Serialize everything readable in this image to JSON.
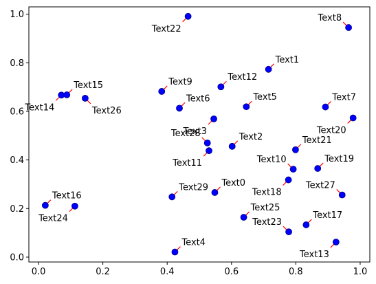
{
  "chart_data": {
    "type": "scatter",
    "title": "",
    "xlabel": "",
    "ylabel": "",
    "xlim": [
      -0.03,
      1.03
    ],
    "ylim": [
      -0.02,
      1.03
    ],
    "xticks": [
      0.0,
      0.2,
      0.4,
      0.6,
      0.8,
      1.0
    ],
    "xtick_labels": [
      "0.0",
      "0.2",
      "0.4",
      "0.6",
      "0.8",
      "1.0"
    ],
    "yticks": [
      0.0,
      0.2,
      0.4,
      0.6,
      0.8,
      1.0
    ],
    "ytick_labels": [
      "0.0",
      "0.2",
      "0.4",
      "0.6",
      "0.8",
      "1.0"
    ],
    "grid": false,
    "marker_color": "#0000ff",
    "marker_edge_color": "#000080",
    "annotation_line_color": "#ff0000",
    "points": [
      {
        "label": "Text0",
        "x": 0.548,
        "y": 0.266,
        "label_side": "upper-right"
      },
      {
        "label": "Text1",
        "x": 0.715,
        "y": 0.773,
        "label_side": "upper-right"
      },
      {
        "label": "Text2",
        "x": 0.602,
        "y": 0.456,
        "label_side": "upper-right"
      },
      {
        "label": "Text3",
        "x": 0.545,
        "y": 0.569,
        "label_side": "lower-left"
      },
      {
        "label": "Text4",
        "x": 0.424,
        "y": 0.021,
        "label_side": "upper-right"
      },
      {
        "label": "Text5",
        "x": 0.646,
        "y": 0.619,
        "label_side": "upper-right"
      },
      {
        "label": "Text6",
        "x": 0.438,
        "y": 0.613,
        "label_side": "upper-right"
      },
      {
        "label": "Text7",
        "x": 0.892,
        "y": 0.618,
        "label_side": "upper-right"
      },
      {
        "label": "Text8",
        "x": 0.964,
        "y": 0.945,
        "label_side": "upper-left"
      },
      {
        "label": "Text9",
        "x": 0.383,
        "y": 0.682,
        "label_side": "upper-right"
      },
      {
        "label": "Text10",
        "x": 0.792,
        "y": 0.362,
        "label_side": "upper-left"
      },
      {
        "label": "Text11",
        "x": 0.53,
        "y": 0.438,
        "label_side": "lower-left"
      },
      {
        "label": "Text12",
        "x": 0.567,
        "y": 0.701,
        "label_side": "upper-right"
      },
      {
        "label": "Text13",
        "x": 0.925,
        "y": 0.062,
        "label_side": "lower-left"
      },
      {
        "label": "Text14",
        "x": 0.071,
        "y": 0.667,
        "label_side": "lower-left"
      },
      {
        "label": "Text15",
        "x": 0.088,
        "y": 0.668,
        "label_side": "upper-right"
      },
      {
        "label": "Text16",
        "x": 0.021,
        "y": 0.213,
        "label_side": "upper-right"
      },
      {
        "label": "Text17",
        "x": 0.832,
        "y": 0.133,
        "label_side": "upper-right"
      },
      {
        "label": "Text18",
        "x": 0.777,
        "y": 0.318,
        "label_side": "lower-left"
      },
      {
        "label": "Text19",
        "x": 0.868,
        "y": 0.365,
        "label_side": "upper-right"
      },
      {
        "label": "Text20",
        "x": 0.978,
        "y": 0.573,
        "label_side": "lower-left"
      },
      {
        "label": "Text21",
        "x": 0.799,
        "y": 0.442,
        "label_side": "upper-right"
      },
      {
        "label": "Text22",
        "x": 0.465,
        "y": 0.991,
        "label_side": "lower-left"
      },
      {
        "label": "Text23",
        "x": 0.778,
        "y": 0.104,
        "label_side": "upper-left"
      },
      {
        "label": "Text24",
        "x": 0.113,
        "y": 0.21,
        "label_side": "lower-left"
      },
      {
        "label": "Text25",
        "x": 0.638,
        "y": 0.164,
        "label_side": "upper-right"
      },
      {
        "label": "Text26",
        "x": 0.145,
        "y": 0.654,
        "label_side": "lower-right"
      },
      {
        "label": "Text27",
        "x": 0.944,
        "y": 0.256,
        "label_side": "upper-left"
      },
      {
        "label": "Text28",
        "x": 0.525,
        "y": 0.47,
        "label_side": "upper-left"
      },
      {
        "label": "Text29",
        "x": 0.415,
        "y": 0.248,
        "label_side": "upper-right"
      }
    ]
  }
}
